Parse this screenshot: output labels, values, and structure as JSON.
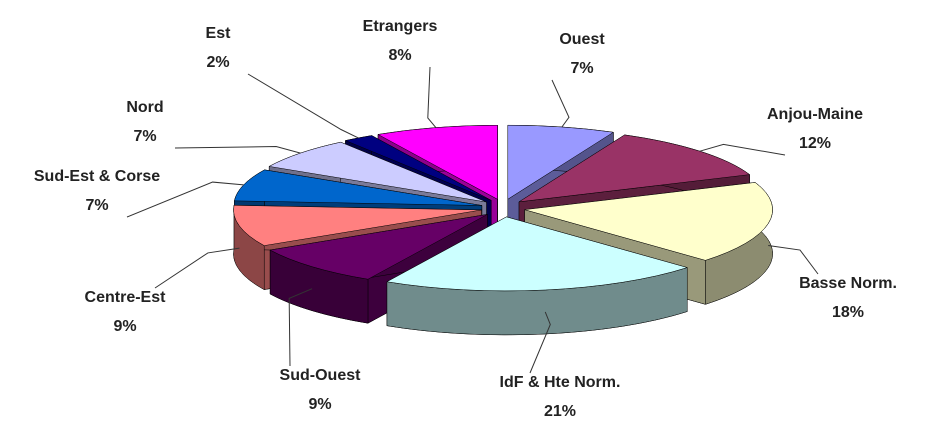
{
  "chart_data": {
    "type": "pie",
    "categories": [
      "Ouest",
      "Anjou-Maine",
      "Basse Norm.",
      "IdF & Hte Norm.",
      "Sud-Ouest",
      "Centre-Est",
      "Sud-Est & Corse",
      "Nord",
      "Est",
      "Etrangers"
    ],
    "values": [
      7,
      12,
      18,
      21,
      9,
      9,
      7,
      7,
      2,
      8
    ],
    "value_labels": [
      "7%",
      "12%",
      "18%",
      "21%",
      "9%",
      "9%",
      "7%",
      "7%",
      "2%",
      "8%"
    ],
    "colors": [
      "#9999ff",
      "#993366",
      "#ffffcc",
      "#ccffff",
      "#660066",
      "#ff8080",
      "#0066cc",
      "#ccccff",
      "#000080",
      "#ff00ff"
    ]
  }
}
